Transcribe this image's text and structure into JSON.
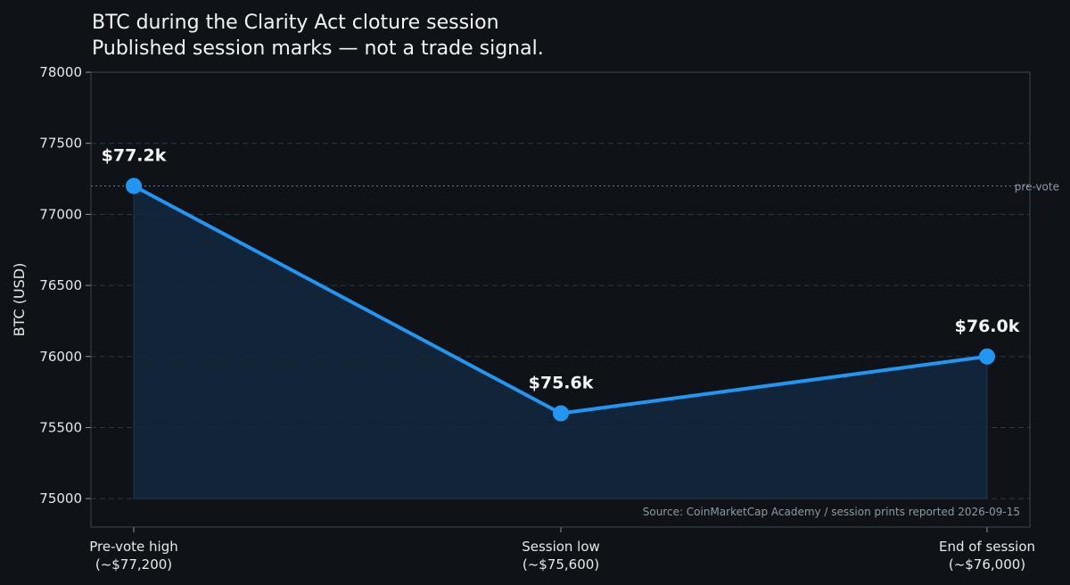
{
  "chart_data": {
    "type": "line",
    "title": "BTC during the Clarity Act cloture session",
    "subtitle": "Published session marks — not a trade signal.",
    "xlabel": "",
    "ylabel": "BTC (USD)",
    "categories": [
      [
        "Pre-vote high",
        "(~$77,200)"
      ],
      [
        "Session low",
        "(~$75,600)"
      ],
      [
        "End of session",
        "(~$76,000)"
      ]
    ],
    "values": [
      77200,
      75600,
      76000
    ],
    "data_labels": [
      "$77.2k",
      "$75.6k",
      "$76.0k"
    ],
    "ylim": [
      74800,
      78000
    ],
    "yticks": [
      75000,
      75500,
      76000,
      76500,
      77000,
      77500,
      78000
    ],
    "reference_line": {
      "value": 77200,
      "label": "pre-vote"
    },
    "source": "Source: CoinMarketCap Academy / session prints reported 2026-09-15",
    "grid": true,
    "legend": "none",
    "colors": {
      "line": "#2196f3",
      "fill": "#13283d",
      "background": "#0f1317",
      "axes_border": "#3a4752",
      "grid": "#2d3844"
    }
  }
}
